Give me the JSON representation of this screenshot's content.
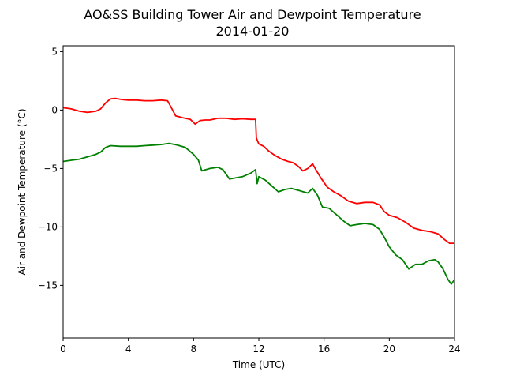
{
  "chart_data": {
    "type": "line",
    "title": "AO&SS Building Tower Air and Dewpoint Temperature",
    "subtitle": "2014-01-20",
    "xlabel": "Time (UTC)",
    "ylabel": "Air and Dewpoint Temperature (°C)",
    "xlim": [
      0,
      24
    ],
    "ylim": [
      -19.5,
      5.5
    ],
    "xticks": [
      0,
      4,
      8,
      12,
      16,
      20,
      24
    ],
    "yticks": [
      5,
      0,
      -5,
      -10,
      -15
    ],
    "grid": false,
    "series": [
      {
        "color": "#ff0000",
        "points": [
          [
            0,
            0.2
          ],
          [
            0.5,
            0.1
          ],
          [
            1,
            -0.1
          ],
          [
            1.5,
            -0.2
          ],
          [
            2,
            -0.1
          ],
          [
            2.3,
            0.1
          ],
          [
            2.6,
            0.6
          ],
          [
            2.9,
            0.95
          ],
          [
            3.2,
            1.0
          ],
          [
            3.6,
            0.9
          ],
          [
            4,
            0.85
          ],
          [
            4.5,
            0.85
          ],
          [
            5,
            0.8
          ],
          [
            5.5,
            0.8
          ],
          [
            6,
            0.85
          ],
          [
            6.4,
            0.8
          ],
          [
            6.6,
            0.3
          ],
          [
            6.9,
            -0.5
          ],
          [
            7.3,
            -0.65
          ],
          [
            7.8,
            -0.8
          ],
          [
            8.1,
            -1.2
          ],
          [
            8.4,
            -0.9
          ],
          [
            8.7,
            -0.85
          ],
          [
            9,
            -0.85
          ],
          [
            9.5,
            -0.7
          ],
          [
            10,
            -0.7
          ],
          [
            10.5,
            -0.8
          ],
          [
            11,
            -0.75
          ],
          [
            11.5,
            -0.8
          ],
          [
            11.8,
            -0.8
          ],
          [
            11.85,
            -2.4
          ],
          [
            12,
            -2.9
          ],
          [
            12.3,
            -3.1
          ],
          [
            12.6,
            -3.5
          ],
          [
            13,
            -3.9
          ],
          [
            13.4,
            -4.2
          ],
          [
            13.8,
            -4.4
          ],
          [
            14.1,
            -4.5
          ],
          [
            14.4,
            -4.8
          ],
          [
            14.7,
            -5.2
          ],
          [
            15,
            -5.0
          ],
          [
            15.3,
            -4.6
          ],
          [
            15.5,
            -5.1
          ],
          [
            15.8,
            -5.8
          ],
          [
            16.2,
            -6.6
          ],
          [
            16.6,
            -7.0
          ],
          [
            17,
            -7.3
          ],
          [
            17.5,
            -7.8
          ],
          [
            18,
            -8.0
          ],
          [
            18.5,
            -7.9
          ],
          [
            19,
            -7.9
          ],
          [
            19.4,
            -8.1
          ],
          [
            19.7,
            -8.7
          ],
          [
            20,
            -9.0
          ],
          [
            20.5,
            -9.2
          ],
          [
            21,
            -9.6
          ],
          [
            21.5,
            -10.1
          ],
          [
            22,
            -10.3
          ],
          [
            22.5,
            -10.4
          ],
          [
            23,
            -10.6
          ],
          [
            23.4,
            -11.1
          ],
          [
            23.7,
            -11.4
          ],
          [
            24,
            -11.4
          ]
        ]
      },
      {
        "color": "#008000",
        "points": [
          [
            0,
            -4.4
          ],
          [
            0.5,
            -4.3
          ],
          [
            1,
            -4.2
          ],
          [
            1.5,
            -4.0
          ],
          [
            2,
            -3.8
          ],
          [
            2.3,
            -3.6
          ],
          [
            2.6,
            -3.2
          ],
          [
            2.9,
            -3.05
          ],
          [
            3.5,
            -3.1
          ],
          [
            4,
            -3.1
          ],
          [
            4.5,
            -3.1
          ],
          [
            5,
            -3.05
          ],
          [
            5.5,
            -3.0
          ],
          [
            6,
            -2.95
          ],
          [
            6.5,
            -2.85
          ],
          [
            7,
            -3.0
          ],
          [
            7.5,
            -3.2
          ],
          [
            8,
            -3.8
          ],
          [
            8.3,
            -4.3
          ],
          [
            8.5,
            -5.2
          ],
          [
            9,
            -5.0
          ],
          [
            9.5,
            -4.9
          ],
          [
            9.8,
            -5.1
          ],
          [
            10.2,
            -5.9
          ],
          [
            10.6,
            -5.8
          ],
          [
            11,
            -5.7
          ],
          [
            11.5,
            -5.4
          ],
          [
            11.8,
            -5.1
          ],
          [
            11.9,
            -6.3
          ],
          [
            12,
            -5.7
          ],
          [
            12.4,
            -6.0
          ],
          [
            12.8,
            -6.5
          ],
          [
            13.2,
            -7.0
          ],
          [
            13.6,
            -6.8
          ],
          [
            14,
            -6.7
          ],
          [
            14.5,
            -6.9
          ],
          [
            15,
            -7.1
          ],
          [
            15.3,
            -6.7
          ],
          [
            15.6,
            -7.3
          ],
          [
            15.9,
            -8.3
          ],
          [
            16.3,
            -8.4
          ],
          [
            16.8,
            -9.0
          ],
          [
            17.2,
            -9.5
          ],
          [
            17.6,
            -9.9
          ],
          [
            18,
            -9.8
          ],
          [
            18.5,
            -9.7
          ],
          [
            19,
            -9.8
          ],
          [
            19.4,
            -10.2
          ],
          [
            19.7,
            -10.9
          ],
          [
            20,
            -11.7
          ],
          [
            20.4,
            -12.4
          ],
          [
            20.8,
            -12.8
          ],
          [
            21.2,
            -13.6
          ],
          [
            21.6,
            -13.2
          ],
          [
            22,
            -13.2
          ],
          [
            22.4,
            -12.9
          ],
          [
            22.8,
            -12.8
          ],
          [
            23,
            -13.0
          ],
          [
            23.3,
            -13.6
          ],
          [
            23.6,
            -14.5
          ],
          [
            23.8,
            -14.9
          ],
          [
            24,
            -14.5
          ]
        ]
      }
    ]
  }
}
